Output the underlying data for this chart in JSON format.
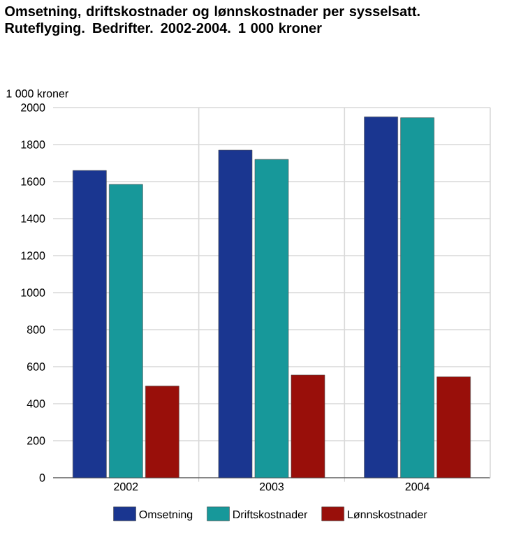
{
  "chart_data": {
    "type": "bar",
    "title": "Omsetning, driftskostnader og lønnskostnader per sysselsatt.  Ruteflyging. Bedrifter. 2002-2004. 1 000 kroner",
    "ylabel": "1 000 kroner",
    "categories": [
      "2002",
      "2003",
      "2004"
    ],
    "series": [
      {
        "name": "Omsetning",
        "color": "#1a3690",
        "values": [
          1660,
          1770,
          1950
        ]
      },
      {
        "name": "Driftskostnader",
        "color": "#17989a",
        "values": [
          1585,
          1720,
          1945
        ]
      },
      {
        "name": "Lønnskostnader",
        "color": "#990f0a",
        "values": [
          495,
          555,
          545
        ]
      }
    ],
    "ylim": [
      0,
      2000
    ],
    "yticks": [
      0,
      200,
      400,
      600,
      800,
      1000,
      1200,
      1400,
      1600,
      1800,
      2000
    ],
    "grid": true,
    "legend": "bottom"
  }
}
